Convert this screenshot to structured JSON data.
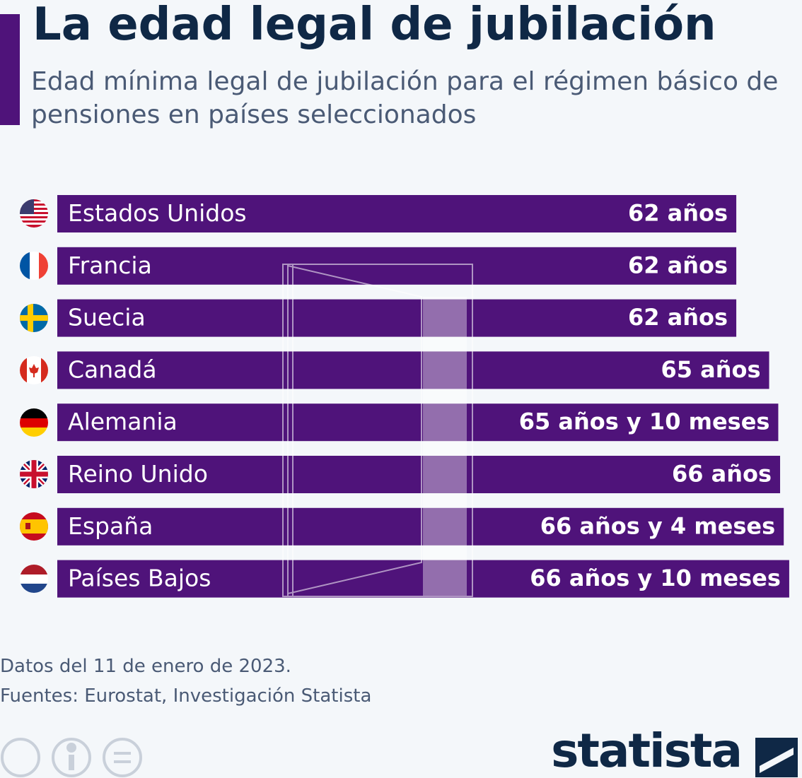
{
  "chart_data": {
    "type": "bar",
    "orientation": "horizontal",
    "title": "La edad legal de jubilación",
    "subtitle": "Edad mínima legal de jubilación para el régimen básico de pensiones en países seleccionados",
    "categories": [
      "Estados Unidos",
      "Francia",
      "Suecia",
      "Canadá",
      "Alemania",
      "Reino Unido",
      "España",
      "Países Bajos"
    ],
    "values": [
      62,
      62,
      62,
      65,
      65.833,
      66,
      66.333,
      66.833
    ],
    "value_labels": [
      "62 años",
      "62 años",
      "62 años",
      "65 años",
      "65 años y 10 meses",
      "66 años",
      "66 años y 4 meses",
      "66 años y 10 meses"
    ],
    "color": "#4f137a",
    "xlim": [
      0,
      68
    ],
    "note": "Datos del 11 de enero de 2023.",
    "source": "Fuentes: Eurostat, Investigación Statista",
    "logo": "statista"
  }
}
